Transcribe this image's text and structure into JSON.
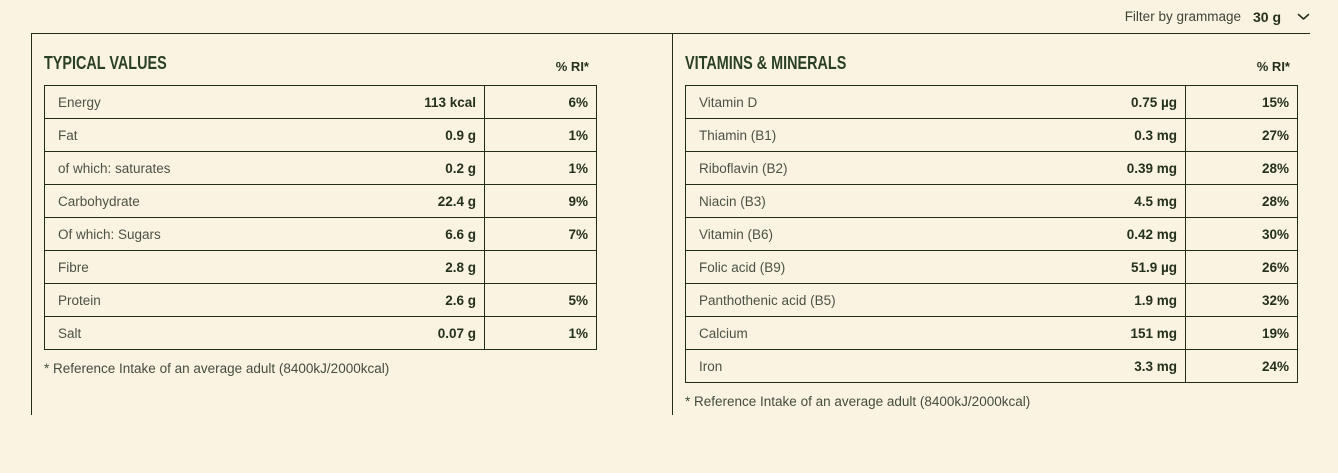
{
  "filter": {
    "label": "Filter by grammage",
    "value": "30 g"
  },
  "panels": [
    {
      "title": "TYPICAL VALUES",
      "ri_header": "% RI*",
      "rows": [
        {
          "label": "Energy",
          "value": "113 kcal",
          "ri": "6%"
        },
        {
          "label": "Fat",
          "value": "0.9 g",
          "ri": "1%"
        },
        {
          "label": "of which: saturates",
          "value": "0.2 g",
          "ri": "1%"
        },
        {
          "label": "Carbohydrate",
          "value": "22.4 g",
          "ri": "9%"
        },
        {
          "label": "Of which: Sugars",
          "value": "6.6 g",
          "ri": "7%"
        },
        {
          "label": "Fibre",
          "value": "2.8 g",
          "ri": ""
        },
        {
          "label": "Protein",
          "value": "2.6 g",
          "ri": "5%"
        },
        {
          "label": "Salt",
          "value": "0.07 g",
          "ri": "1%"
        }
      ],
      "footnote": "* Reference Intake of an average adult (8400kJ/2000kcal)"
    },
    {
      "title": "VITAMINS & MINERALS",
      "ri_header": "% RI*",
      "rows": [
        {
          "label": "Vitamin D",
          "value": "0.75 µg",
          "ri": "15%"
        },
        {
          "label": "Thiamin (B1)",
          "value": "0.3 mg",
          "ri": "27%"
        },
        {
          "label": "Riboflavin (B2)",
          "value": "0.39 mg",
          "ri": "28%"
        },
        {
          "label": "Niacin (B3)",
          "value": "4.5 mg",
          "ri": "28%"
        },
        {
          "label": "Vitamin (B6)",
          "value": "0.42 mg",
          "ri": "30%"
        },
        {
          "label": "Folic acid (B9)",
          "value": "51.9 µg",
          "ri": "26%"
        },
        {
          "label": "Panthothenic acid (B5)",
          "value": "1.9 mg",
          "ri": "32%"
        },
        {
          "label": "Calcium",
          "value": "151 mg",
          "ri": "19%"
        },
        {
          "label": "Iron",
          "value": "3.3 mg",
          "ri": "24%"
        }
      ],
      "footnote": "* Reference Intake of an average adult (8400kJ/2000kcal)"
    }
  ],
  "colors": {
    "background": "#faf3e1",
    "border": "#212d17",
    "title": "#2a4026",
    "label_text": "#4c5245",
    "value_text": "#25301d"
  }
}
